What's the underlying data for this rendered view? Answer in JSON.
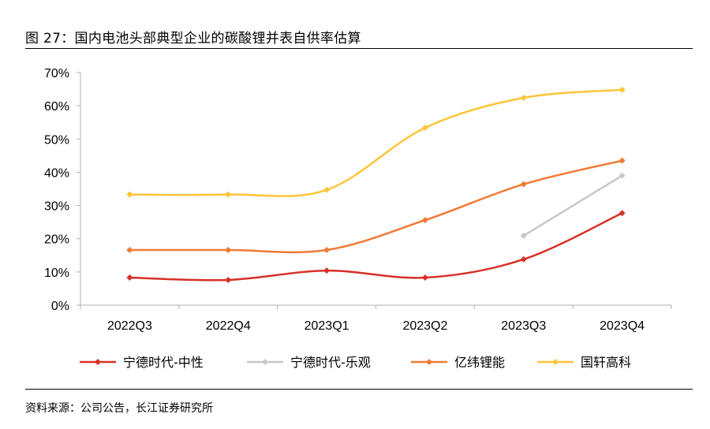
{
  "figure": {
    "title": "图 27：国内电池头部典型企业的碳酸锂并表自供率估算",
    "source": "资料来源：公司公告，长江证券研究所"
  },
  "chart_data": {
    "type": "line",
    "title": "",
    "xlabel": "",
    "ylabel": "",
    "categories": [
      "2022Q3",
      "2022Q4",
      "2023Q1",
      "2023Q2",
      "2023Q3",
      "2023Q4"
    ],
    "ylim": [
      0,
      0.7
    ],
    "yticks": [
      0,
      0.1,
      0.2,
      0.3,
      0.4,
      0.5,
      0.6,
      0.7
    ],
    "ytick_labels": [
      "0%",
      "10%",
      "20%",
      "30%",
      "40%",
      "50%",
      "60%",
      "70%"
    ],
    "grid": false,
    "legend_position": "bottom",
    "smooth": true,
    "series": [
      {
        "name": "宁德时代-中性",
        "color": "#d73027",
        "values": [
          0.083,
          0.076,
          0.104,
          0.083,
          0.138,
          0.277
        ]
      },
      {
        "name": "宁德时代-乐观",
        "color": "#c8c8c8",
        "values": [
          null,
          null,
          null,
          null,
          0.209,
          0.39
        ]
      },
      {
        "name": "亿纬锂能",
        "color": "#f07a35",
        "values": [
          0.166,
          0.166,
          0.166,
          0.256,
          0.364,
          0.435
        ]
      },
      {
        "name": "国轩高科",
        "color": "#fcc538",
        "values": [
          0.333,
          0.333,
          0.347,
          0.534,
          0.624,
          0.648
        ]
      }
    ]
  }
}
